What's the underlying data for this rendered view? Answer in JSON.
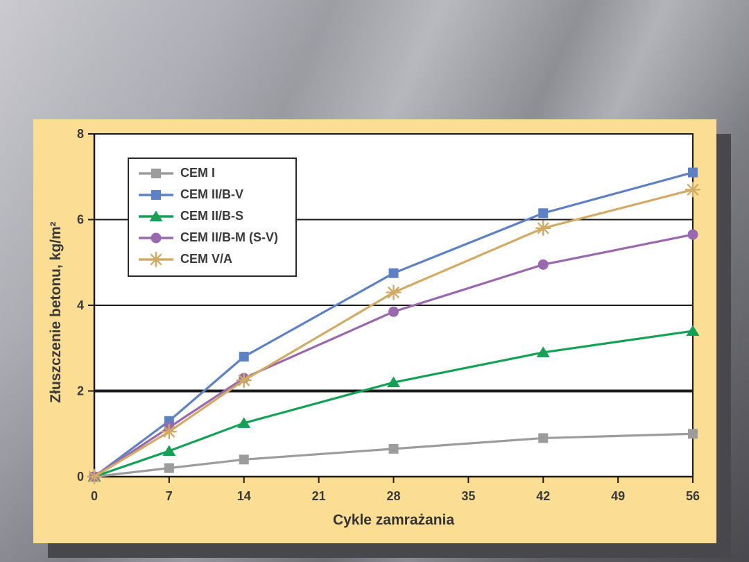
{
  "slide": {
    "panel_background": "#fbdd93",
    "panel_shadow": "#47474c",
    "plot_background": "#ffffff",
    "axis_color": "#1a1a1a",
    "text_color": "#3a3a3a"
  },
  "chart_data": {
    "type": "line",
    "title": "",
    "xlabel": "Cykle zamrażania",
    "ylabel": "Złuszczenie betonu, kg/m²",
    "xlim": [
      0,
      56
    ],
    "ylim": [
      0,
      8
    ],
    "x_ticks": [
      0,
      7,
      14,
      21,
      28,
      35,
      42,
      49,
      56
    ],
    "y_ticks": [
      0,
      2,
      4,
      6,
      8
    ],
    "gridlines_y": [
      2,
      4,
      6
    ],
    "thick_gridline_y": 2,
    "grid": "horizontal-only",
    "legend_position": "top-left-inside",
    "x": [
      0,
      7,
      14,
      28,
      42,
      56
    ],
    "series": [
      {
        "name": "CEM I",
        "color": "#9c9c9c",
        "marker": "square",
        "values": [
          0,
          0.2,
          0.4,
          0.65,
          0.9,
          1.0
        ]
      },
      {
        "name": "CEM II/B-V",
        "color": "#5e81c5",
        "marker": "square",
        "values": [
          0,
          1.3,
          2.8,
          4.75,
          6.15,
          7.1
        ]
      },
      {
        "name": "CEM II/B-S",
        "color": "#14a155",
        "marker": "triangle",
        "values": [
          0,
          0.6,
          1.25,
          2.2,
          2.9,
          3.4
        ]
      },
      {
        "name": "CEM II/B-M (S-V)",
        "color": "#9a68ae",
        "marker": "circle",
        "values": [
          0,
          1.15,
          2.3,
          3.85,
          4.95,
          5.65
        ]
      },
      {
        "name": "CEM V/A",
        "color": "#d1ab66",
        "marker": "star",
        "values": [
          0,
          1.05,
          2.25,
          4.3,
          5.8,
          6.7
        ]
      }
    ]
  }
}
